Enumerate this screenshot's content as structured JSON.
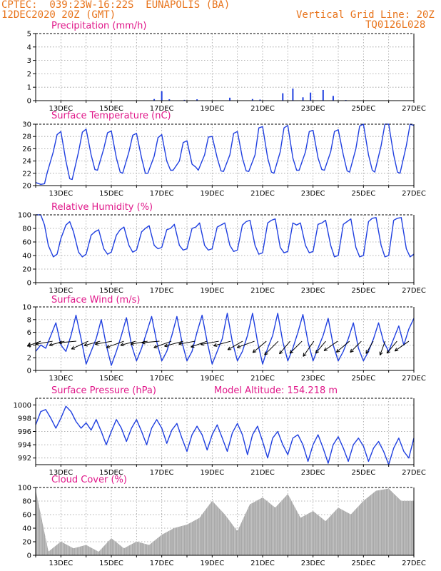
{
  "header": {
    "line1": "CPTEC:  039:23W-16:22S  EUNAPOLIS (BA)",
    "line2": "12DEC2020 20Z (GMT)",
    "grid_line": "Vertical Grid Line: 20Z",
    "code": "TQ0126L028"
  },
  "colors": {
    "header": "#e8741c",
    "title": "#e0188a",
    "line": "#2040e0",
    "bar": "#2040e0",
    "cloud": "#a8a8a8",
    "grid": "#9a9a9a"
  },
  "x_axis": {
    "start": "12DEC2020 00Z",
    "end": "27DEC2020 00Z",
    "ticks": [
      {
        "day": "13DEC",
        "label": "13DEC"
      },
      {
        "day": "15DEC",
        "label": "15DEC"
      },
      {
        "day": "17DEC",
        "label": "17DEC"
      },
      {
        "day": "19DEC",
        "label": "19DEC"
      },
      {
        "day": "21DEC",
        "label": "21DEC"
      },
      {
        "day": "23DEC",
        "label": "23DEC"
      },
      {
        "day": "25DEC",
        "label": "25DEC"
      },
      {
        "day": "27DEC",
        "label": "27DEC"
      }
    ],
    "grid_days": [
      "12DEC",
      "13DEC",
      "14DEC",
      "15DEC",
      "16DEC",
      "17DEC",
      "18DEC",
      "19DEC",
      "20DEC",
      "21DEC",
      "22DEC",
      "23DEC",
      "24DEC",
      "25DEC",
      "26DEC",
      "27DEC"
    ]
  },
  "panels": {
    "precip": {
      "title": "Precipitation (mm/h)",
      "yticks": [
        "0",
        "1",
        "2",
        "3",
        "4",
        "5"
      ]
    },
    "temp": {
      "title": "Surface Temperature (nC)",
      "yticks": [
        "20",
        "22",
        "24",
        "26",
        "28",
        "30"
      ]
    },
    "rh": {
      "title": "Relative Humidity (%)",
      "yticks": [
        "0",
        "20",
        "40",
        "60",
        "80",
        "100"
      ]
    },
    "wind": {
      "title": "Surface Wind (m/s)",
      "yticks": [
        "0",
        "2",
        "4",
        "6",
        "8",
        "10"
      ]
    },
    "pressure": {
      "title": "Surface Pressure (hPa)",
      "altitude": "Model Altitude: 154.218 m",
      "yticks": [
        "992",
        "994",
        "996",
        "998",
        "1000"
      ]
    },
    "cloud": {
      "title": "Cloud Cover (%)",
      "yticks": [
        "0",
        "20",
        "40",
        "60",
        "80",
        "100"
      ]
    }
  },
  "chart_data": [
    {
      "type": "bar",
      "title": "Precipitation (mm/h)",
      "x_units": "days since 12DEC2020 00Z",
      "ylim": [
        0,
        5
      ],
      "x": [
        4.7,
        5.0,
        5.3,
        5.9,
        6.4,
        7.7,
        8.6,
        8.9,
        9.8,
        10.2,
        10.6,
        10.9,
        11.4,
        11.8,
        12.3
      ],
      "values": [
        0.12,
        0.7,
        0.1,
        0.06,
        0.1,
        0.22,
        0.12,
        0.08,
        0.55,
        0.9,
        0.25,
        0.6,
        0.8,
        0.35,
        0.05
      ]
    },
    {
      "type": "line",
      "title": "Surface Temperature (nC)",
      "x_units": "days since 12DEC2020 00Z",
      "ylim": [
        20,
        30
      ],
      "x": [
        0,
        0.2,
        0.35,
        0.45,
        0.7,
        0.85,
        1.0,
        1.2,
        1.35,
        1.45,
        1.7,
        1.85,
        2.0,
        2.2,
        2.35,
        2.45,
        2.7,
        2.85,
        3.0,
        3.2,
        3.35,
        3.45,
        3.7,
        3.85,
        4.0,
        4.2,
        4.35,
        4.45,
        4.7,
        4.85,
        5.0,
        5.2,
        5.35,
        5.45,
        5.7,
        5.85,
        6.0,
        6.2,
        6.35,
        6.45,
        6.7,
        6.85,
        7.0,
        7.2,
        7.35,
        7.45,
        7.7,
        7.85,
        8.0,
        8.2,
        8.35,
        8.45,
        8.7,
        8.85,
        9.0,
        9.2,
        9.35,
        9.45,
        9.7,
        9.85,
        10.0,
        10.2,
        10.35,
        10.45,
        10.7,
        10.85,
        11.0,
        11.2,
        11.35,
        11.45,
        11.7,
        11.85,
        12.0,
        12.2,
        12.35,
        12.45,
        12.7,
        12.85,
        13.0,
        13.2,
        13.35,
        13.45,
        13.7,
        13.85,
        14.0,
        14.2,
        14.35,
        14.45,
        14.7,
        14.85,
        15.0
      ],
      "values": [
        20.5,
        20.2,
        20.3,
        22,
        25.5,
        28.3,
        28.8,
        24,
        21.1,
        21,
        25.5,
        28.7,
        29.2,
        25,
        22.6,
        22.5,
        26,
        28.6,
        28.9,
        24.5,
        22.2,
        22,
        25.5,
        28.2,
        28.5,
        24.5,
        22,
        22,
        24.8,
        27.8,
        28.3,
        24,
        22.5,
        22.5,
        24,
        27,
        27.3,
        23.5,
        23,
        22.5,
        25,
        27.9,
        28,
        24.5,
        22.4,
        22.3,
        25,
        28.5,
        28.8,
        24.5,
        22.4,
        22.3,
        25,
        29.4,
        29.6,
        24.5,
        22.2,
        22,
        25.5,
        29.4,
        29.8,
        24.5,
        22.5,
        22.5,
        25.5,
        28.8,
        29,
        24.5,
        22.6,
        22.5,
        25.5,
        28.8,
        29.1,
        25,
        22.4,
        22.2,
        26,
        29.7,
        30,
        25,
        22.5,
        22.2,
        26.5,
        30,
        30,
        25,
        22.2,
        22,
        26.5,
        30,
        29.8
      ],
      "note": "curve approximate"
    },
    {
      "type": "line",
      "title": "Relative Humidity (%)",
      "x_units": "days since 12DEC2020 00Z",
      "ylim": [
        0,
        100
      ],
      "x": [
        0,
        0.2,
        0.35,
        0.5,
        0.7,
        0.85,
        1.0,
        1.2,
        1.35,
        1.5,
        1.7,
        1.85,
        2.0,
        2.2,
        2.35,
        2.5,
        2.7,
        2.85,
        3.0,
        3.2,
        3.35,
        3.5,
        3.7,
        3.85,
        4.0,
        4.2,
        4.35,
        4.5,
        4.7,
        4.85,
        5.0,
        5.2,
        5.35,
        5.5,
        5.7,
        5.85,
        6.0,
        6.2,
        6.35,
        6.5,
        6.7,
        6.85,
        7.0,
        7.2,
        7.35,
        7.5,
        7.7,
        7.85,
        8.0,
        8.2,
        8.35,
        8.5,
        8.7,
        8.85,
        9.0,
        9.2,
        9.35,
        9.5,
        9.7,
        9.85,
        10.0,
        10.2,
        10.35,
        10.5,
        10.7,
        10.85,
        11.0,
        11.2,
        11.35,
        11.5,
        11.7,
        11.85,
        12.0,
        12.2,
        12.35,
        12.5,
        12.7,
        12.85,
        13.0,
        13.2,
        13.35,
        13.5,
        13.7,
        13.85,
        14.0,
        14.2,
        14.35,
        14.5,
        14.7,
        14.85,
        15.0
      ],
      "values": [
        100,
        100,
        85,
        55,
        38,
        42,
        65,
        85,
        90,
        75,
        45,
        38,
        42,
        70,
        75,
        78,
        50,
        42,
        45,
        70,
        78,
        82,
        55,
        45,
        48,
        75,
        80,
        84,
        55,
        50,
        52,
        78,
        80,
        86,
        55,
        48,
        50,
        80,
        82,
        88,
        55,
        48,
        50,
        82,
        85,
        88,
        55,
        46,
        48,
        85,
        90,
        92,
        55,
        42,
        44,
        88,
        92,
        94,
        52,
        44,
        46,
        88,
        85,
        88,
        55,
        44,
        46,
        86,
        88,
        92,
        55,
        38,
        40,
        86,
        90,
        94,
        52,
        38,
        40,
        90,
        95,
        96,
        55,
        38,
        40,
        92,
        95,
        96,
        50,
        38,
        42
      ],
      "note": "curve approximate"
    },
    {
      "type": "line",
      "title": "Surface Wind (m/s)",
      "x_units": "days since 12DEC2020 00Z",
      "ylim": [
        0,
        10
      ],
      "x": [
        0,
        0.2,
        0.4,
        0.6,
        0.8,
        1.0,
        1.2,
        1.4,
        1.6,
        1.8,
        2.0,
        2.2,
        2.4,
        2.6,
        2.8,
        3.0,
        3.2,
        3.4,
        3.6,
        3.8,
        4.0,
        4.2,
        4.4,
        4.6,
        4.8,
        5.0,
        5.2,
        5.4,
        5.6,
        5.8,
        6.0,
        6.2,
        6.4,
        6.6,
        6.8,
        7.0,
        7.2,
        7.4,
        7.6,
        7.8,
        8.0,
        8.2,
        8.4,
        8.6,
        8.8,
        9.0,
        9.2,
        9.4,
        9.6,
        9.8,
        10.0,
        10.2,
        10.4,
        10.6,
        10.8,
        11.0,
        11.2,
        11.4,
        11.6,
        11.8,
        12.0,
        12.2,
        12.4,
        12.6,
        12.8,
        13.0,
        13.2,
        13.4,
        13.6,
        13.8,
        14.0,
        14.2,
        14.4,
        14.6,
        14.8,
        15.0
      ],
      "values": [
        3,
        4,
        3.5,
        5.5,
        7.5,
        4,
        3,
        5.5,
        8.7,
        5,
        1,
        3,
        5,
        8,
        4,
        0.8,
        3,
        5.5,
        8.3,
        4,
        1.5,
        3.5,
        6,
        8.5,
        4.5,
        1.5,
        3,
        5.5,
        8.5,
        4.5,
        1.5,
        3,
        6,
        8.7,
        4.5,
        1,
        3,
        5,
        9,
        4.5,
        1.5,
        3,
        5.5,
        9,
        4.5,
        1,
        3.5,
        5.5,
        9,
        4.5,
        1.5,
        3.5,
        6,
        8.8,
        4.5,
        1.5,
        3.5,
        5.5,
        8.2,
        4,
        1.5,
        3,
        5,
        7.5,
        3.5,
        1.5,
        3,
        5,
        7.5,
        4.5,
        3,
        5,
        7,
        4,
        6.5,
        8.2
      ],
      "arrow_angles_deg": [
        200,
        190,
        195,
        185,
        205,
        195,
        190,
        200,
        195,
        190,
        185,
        200,
        195,
        190,
        200,
        190,
        195,
        210,
        200,
        220,
        225,
        230,
        225,
        235,
        230,
        215,
        220,
        225,
        240,
        250,
        230,
        215
      ],
      "arrow_speeds_ms": [
        3,
        4,
        3.5,
        4.2,
        4.5,
        3.8,
        4,
        4.5,
        3.5,
        4,
        4.2,
        4.5,
        4.8,
        3.8,
        4,
        4.5,
        4.2,
        4,
        4.5,
        4.2,
        4.8,
        3.8,
        4,
        4.5,
        3.5,
        3.8,
        4,
        3.5,
        3,
        3.2,
        3.5,
        4
      ]
    },
    {
      "type": "line",
      "title": "Surface Pressure (hPa)",
      "x_units": "days since 12DEC2020 00Z",
      "ylim": [
        991,
        1001
      ],
      "x": [
        0,
        0.2,
        0.4,
        0.6,
        0.8,
        1.0,
        1.2,
        1.4,
        1.6,
        1.8,
        2.0,
        2.2,
        2.4,
        2.6,
        2.8,
        3.0,
        3.2,
        3.4,
        3.6,
        3.8,
        4.0,
        4.2,
        4.4,
        4.6,
        4.8,
        5.0,
        5.2,
        5.4,
        5.6,
        5.8,
        6.0,
        6.2,
        6.4,
        6.6,
        6.8,
        7.0,
        7.2,
        7.4,
        7.6,
        7.8,
        8.0,
        8.2,
        8.4,
        8.6,
        8.8,
        9.0,
        9.2,
        9.4,
        9.6,
        9.8,
        10.0,
        10.2,
        10.4,
        10.6,
        10.8,
        11.0,
        11.2,
        11.4,
        11.6,
        11.8,
        12.0,
        12.2,
        12.4,
        12.6,
        12.8,
        13.0,
        13.2,
        13.4,
        13.6,
        13.8,
        14.0,
        14.2,
        14.4,
        14.6,
        14.8,
        15.0
      ],
      "values": [
        997,
        999,
        999.3,
        998,
        996.5,
        998,
        999.8,
        999,
        997.5,
        996.5,
        997.3,
        996.2,
        997.8,
        996,
        994,
        996,
        997.8,
        996.5,
        994.5,
        996.5,
        997.8,
        996,
        994,
        996.5,
        997.8,
        996.5,
        994.2,
        996.2,
        997.2,
        995,
        993,
        995.5,
        996.8,
        995.5,
        993.2,
        995.5,
        997,
        995,
        993,
        995.8,
        997.2,
        995.5,
        992.5,
        995.5,
        996.8,
        994.5,
        992,
        995,
        996,
        994,
        992.5,
        995,
        995.5,
        994,
        991.5,
        994,
        995.5,
        993.5,
        991.2,
        994,
        995.2,
        993.5,
        991.5,
        994,
        995,
        993.8,
        991.5,
        993.5,
        994.5,
        993,
        991,
        993.5,
        995,
        993,
        992,
        995
      ],
      "note": "curve approximate"
    },
    {
      "type": "bar",
      "title": "Cloud Cover (%)",
      "x_units": "days since 12DEC2020 00Z",
      "ylim": [
        0,
        100
      ],
      "x": [
        0,
        0.5,
        1.0,
        1.5,
        2.0,
        2.5,
        3.0,
        3.5,
        4.0,
        4.5,
        5.0,
        5.5,
        6.0,
        6.5,
        7.0,
        7.5,
        8.0,
        8.5,
        9.0,
        9.5,
        10.0,
        10.5,
        11.0,
        11.5,
        12.0,
        12.5,
        13.0,
        13.5,
        14.0,
        14.5,
        15.0
      ],
      "values": [
        95,
        5,
        20,
        10,
        15,
        5,
        25,
        10,
        20,
        15,
        30,
        40,
        45,
        55,
        80,
        60,
        35,
        75,
        85,
        70,
        90,
        55,
        65,
        50,
        70,
        60,
        80,
        95,
        98,
        80,
        80
      ],
      "note": "envelope approximate"
    }
  ]
}
